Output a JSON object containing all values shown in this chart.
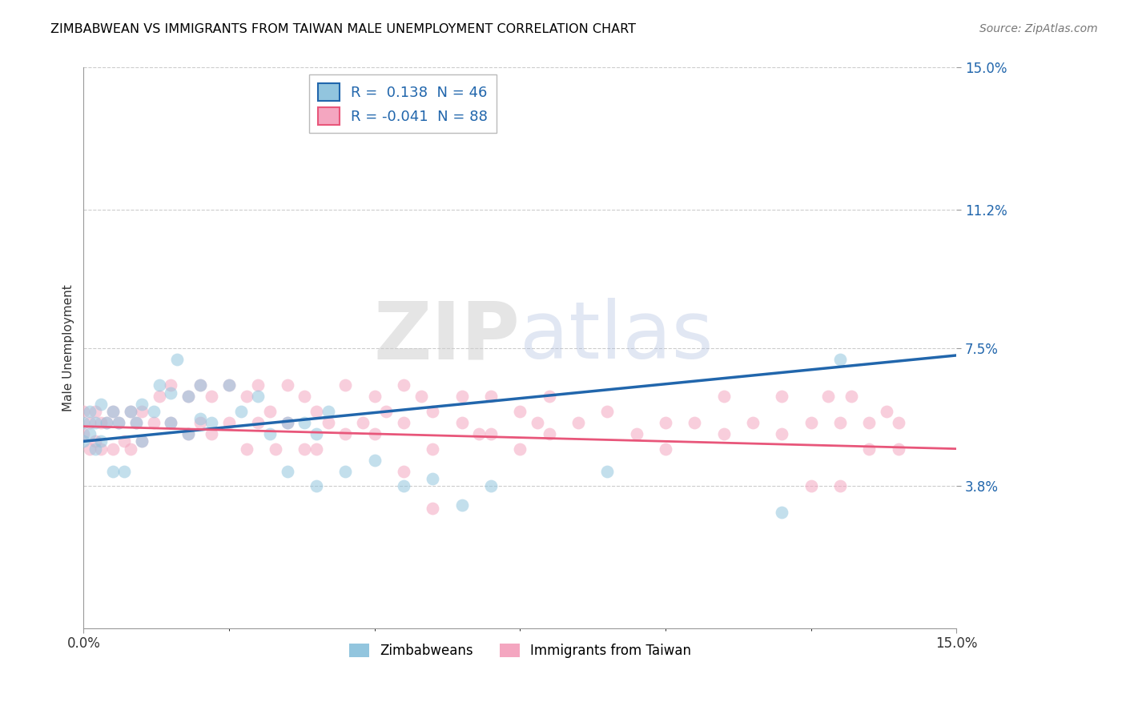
{
  "title": "ZIMBABWEAN VS IMMIGRANTS FROM TAIWAN MALE UNEMPLOYMENT CORRELATION CHART",
  "source": "Source: ZipAtlas.com",
  "ylabel": "Male Unemployment",
  "xmin": 0.0,
  "xmax": 0.15,
  "ymin": 0.0,
  "ymax": 0.15,
  "yticks": [
    0.038,
    0.075,
    0.112,
    0.15
  ],
  "ytick_labels": [
    "3.8%",
    "7.5%",
    "11.2%",
    "15.0%"
  ],
  "legend_entries": [
    {
      "label": "Zimbabweans",
      "R": " 0.138",
      "N": "46",
      "color": "#92c5de"
    },
    {
      "label": "Immigrants from Taiwan",
      "R": "-0.041",
      "N": "88",
      "color": "#f4a6c0"
    }
  ],
  "blue_color": "#92c5de",
  "pink_color": "#f4a6c0",
  "blue_line_color": "#2166ac",
  "pink_line_color": "#e8567a",
  "grid_color": "#cccccc",
  "blue_line_x0": 0.0,
  "blue_line_y0": 0.05,
  "blue_line_x1": 0.15,
  "blue_line_y1": 0.073,
  "pink_line_x0": 0.0,
  "pink_line_y0": 0.054,
  "pink_line_x1": 0.15,
  "pink_line_y1": 0.048,
  "blue_x": [
    0.0,
    0.0,
    0.001,
    0.001,
    0.002,
    0.002,
    0.003,
    0.003,
    0.004,
    0.005,
    0.005,
    0.006,
    0.007,
    0.008,
    0.009,
    0.01,
    0.01,
    0.012,
    0.013,
    0.015,
    0.015,
    0.016,
    0.018,
    0.018,
    0.02,
    0.02,
    0.022,
    0.025,
    0.027,
    0.03,
    0.032,
    0.035,
    0.035,
    0.038,
    0.04,
    0.04,
    0.042,
    0.045,
    0.05,
    0.055,
    0.06,
    0.065,
    0.07,
    0.09,
    0.12,
    0.13
  ],
  "blue_y": [
    0.055,
    0.05,
    0.058,
    0.052,
    0.055,
    0.048,
    0.06,
    0.05,
    0.055,
    0.058,
    0.042,
    0.055,
    0.042,
    0.058,
    0.055,
    0.06,
    0.05,
    0.058,
    0.065,
    0.063,
    0.055,
    0.072,
    0.062,
    0.052,
    0.065,
    0.056,
    0.055,
    0.065,
    0.058,
    0.062,
    0.052,
    0.055,
    0.042,
    0.055,
    0.052,
    0.038,
    0.058,
    0.042,
    0.045,
    0.038,
    0.04,
    0.033,
    0.038,
    0.042,
    0.031,
    0.072
  ],
  "pink_x": [
    0.0,
    0.0,
    0.001,
    0.001,
    0.002,
    0.002,
    0.003,
    0.003,
    0.004,
    0.005,
    0.005,
    0.006,
    0.007,
    0.008,
    0.008,
    0.009,
    0.01,
    0.01,
    0.012,
    0.013,
    0.015,
    0.015,
    0.018,
    0.018,
    0.02,
    0.02,
    0.022,
    0.022,
    0.025,
    0.025,
    0.028,
    0.028,
    0.03,
    0.03,
    0.032,
    0.033,
    0.035,
    0.035,
    0.038,
    0.038,
    0.04,
    0.04,
    0.042,
    0.045,
    0.045,
    0.048,
    0.05,
    0.05,
    0.052,
    0.055,
    0.055,
    0.058,
    0.06,
    0.06,
    0.065,
    0.065,
    0.068,
    0.07,
    0.07,
    0.075,
    0.075,
    0.078,
    0.08,
    0.08,
    0.085,
    0.09,
    0.095,
    0.1,
    0.1,
    0.105,
    0.11,
    0.11,
    0.115,
    0.12,
    0.12,
    0.125,
    0.128,
    0.13,
    0.132,
    0.135,
    0.135,
    0.138,
    0.14,
    0.14,
    0.055,
    0.06,
    0.125,
    0.13
  ],
  "pink_y": [
    0.058,
    0.052,
    0.055,
    0.048,
    0.058,
    0.05,
    0.055,
    0.048,
    0.055,
    0.058,
    0.048,
    0.055,
    0.05,
    0.058,
    0.048,
    0.055,
    0.058,
    0.05,
    0.055,
    0.062,
    0.065,
    0.055,
    0.062,
    0.052,
    0.065,
    0.055,
    0.062,
    0.052,
    0.065,
    0.055,
    0.062,
    0.048,
    0.055,
    0.065,
    0.058,
    0.048,
    0.065,
    0.055,
    0.062,
    0.048,
    0.058,
    0.048,
    0.055,
    0.065,
    0.052,
    0.055,
    0.062,
    0.052,
    0.058,
    0.065,
    0.055,
    0.062,
    0.058,
    0.048,
    0.062,
    0.055,
    0.052,
    0.062,
    0.052,
    0.058,
    0.048,
    0.055,
    0.062,
    0.052,
    0.055,
    0.058,
    0.052,
    0.055,
    0.048,
    0.055,
    0.052,
    0.062,
    0.055,
    0.062,
    0.052,
    0.055,
    0.062,
    0.055,
    0.062,
    0.055,
    0.048,
    0.058,
    0.055,
    0.048,
    0.042,
    0.032,
    0.038,
    0.038
  ]
}
